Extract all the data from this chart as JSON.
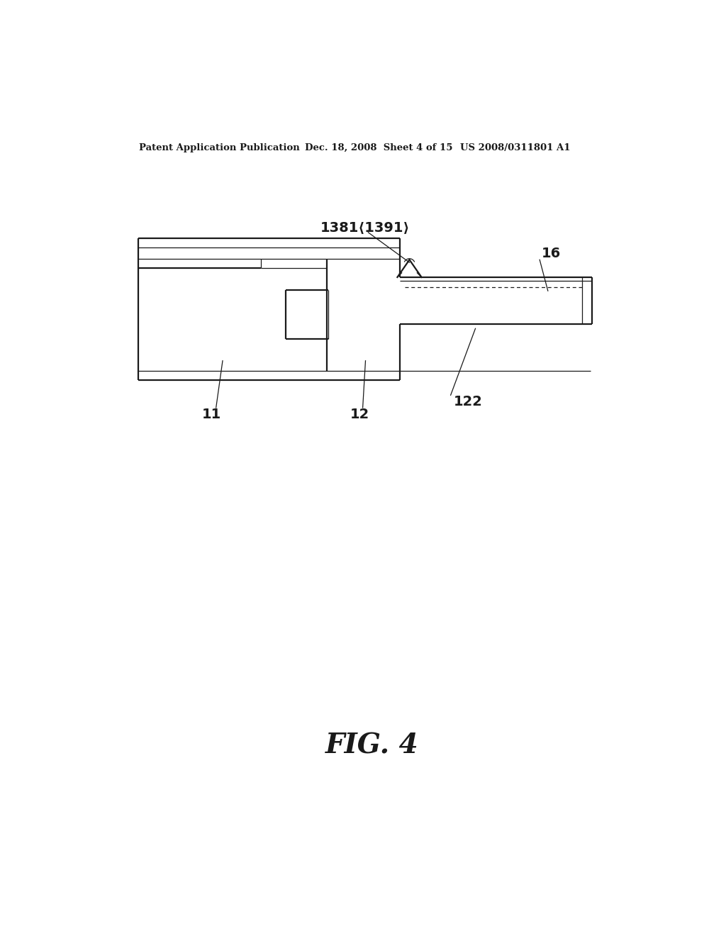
{
  "bg_color": "#ffffff",
  "line_color": "#1a1a1a",
  "header_text": "Patent Application Publication",
  "header_date": "Dec. 18, 2008  Sheet 4 of 15",
  "header_patent": "US 2008/0311801 A1",
  "fig_label": "FIG. 4",
  "label_1381": "1381⟨1391⟩",
  "label_16": "16",
  "label_11": "11",
  "label_12": "12",
  "label_122": "122",
  "lw": 1.6,
  "lw_thin": 0.9,
  "lw_thick": 2.2
}
